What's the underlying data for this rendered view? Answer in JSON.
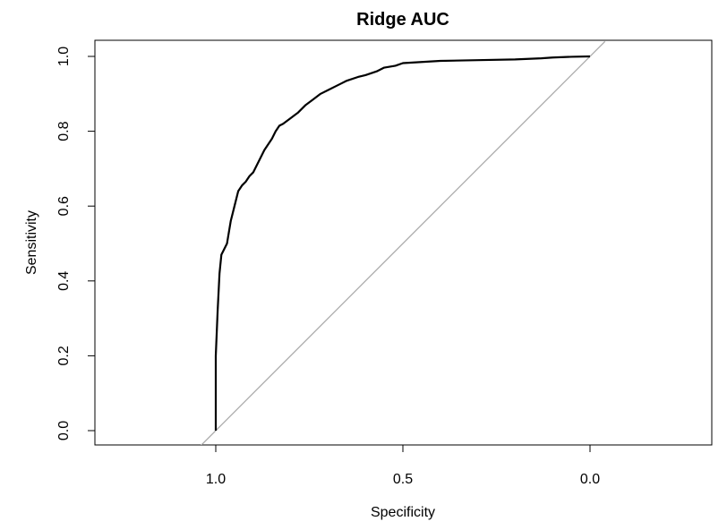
{
  "chart_data": {
    "type": "line",
    "title": "Ridge AUC",
    "xlabel": "Specificity",
    "ylabel": "Sensitivity",
    "x_reversed": true,
    "xlim": [
      1.35,
      -0.35
    ],
    "ylim": [
      0.0,
      1.0
    ],
    "x_ticks": [
      1.0,
      0.5,
      0.0
    ],
    "x_tick_labels": [
      "1.0",
      "0.5",
      "0.0"
    ],
    "y_ticks": [
      0.0,
      0.2,
      0.4,
      0.6,
      0.8,
      1.0
    ],
    "y_tick_labels": [
      "0.0",
      "0.2",
      "0.4",
      "0.6",
      "0.8",
      "1.0"
    ],
    "grid": false,
    "series": [
      {
        "color": "#000000",
        "x": [
          1.0,
          1.0,
          0.995,
          0.99,
          0.985,
          0.98,
          0.97,
          0.96,
          0.955,
          0.95,
          0.94,
          0.93,
          0.92,
          0.91,
          0.9,
          0.89,
          0.88,
          0.87,
          0.86,
          0.85,
          0.84,
          0.83,
          0.82,
          0.8,
          0.78,
          0.76,
          0.74,
          0.72,
          0.7,
          0.68,
          0.65,
          0.62,
          0.6,
          0.57,
          0.55,
          0.52,
          0.5,
          0.45,
          0.4,
          0.3,
          0.2,
          0.13,
          0.1,
          0.05,
          0.0
        ],
        "y": [
          0.0,
          0.2,
          0.32,
          0.42,
          0.47,
          0.48,
          0.5,
          0.56,
          0.58,
          0.6,
          0.64,
          0.655,
          0.665,
          0.68,
          0.69,
          0.71,
          0.73,
          0.75,
          0.765,
          0.78,
          0.8,
          0.815,
          0.82,
          0.835,
          0.85,
          0.87,
          0.885,
          0.9,
          0.91,
          0.92,
          0.935,
          0.945,
          0.95,
          0.96,
          0.97,
          0.975,
          0.982,
          0.985,
          0.988,
          0.99,
          0.992,
          0.995,
          0.997,
          0.999,
          1.0
        ]
      },
      {
        "color": "#a9a9a9",
        "x": [
          1.04,
          -0.04
        ],
        "y": [
          -0.04,
          1.04
        ]
      }
    ]
  }
}
